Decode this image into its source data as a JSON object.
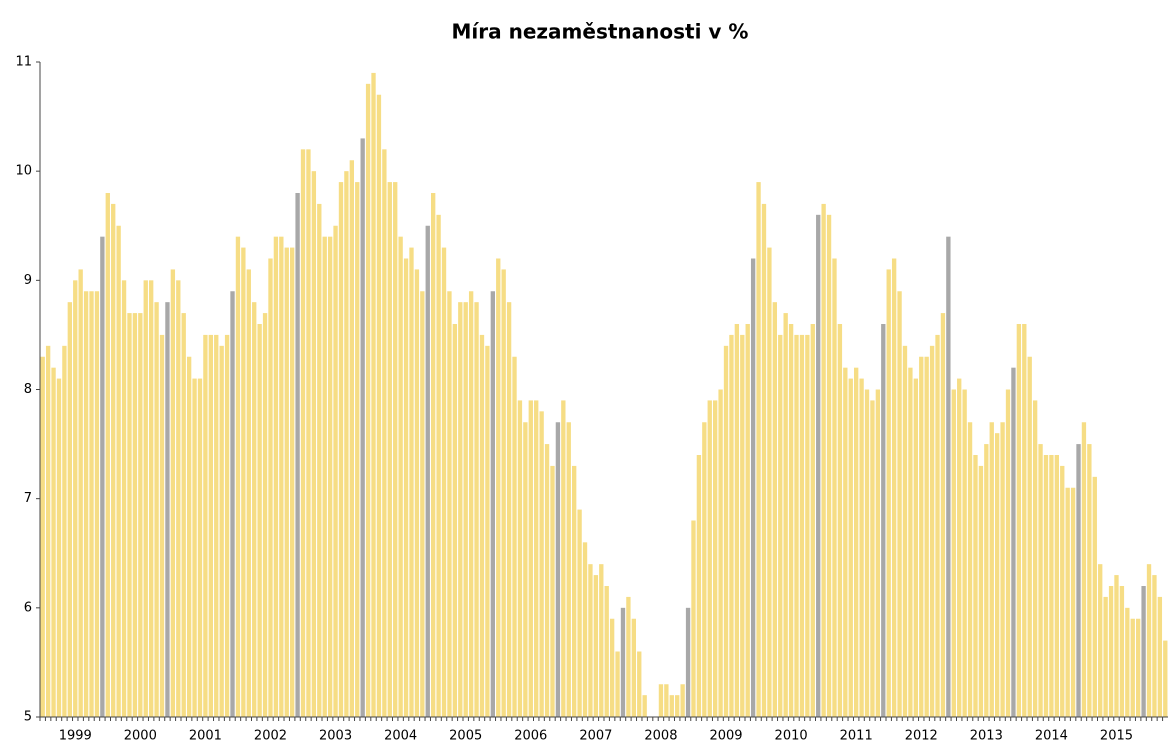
{
  "chart_data": {
    "type": "bar",
    "title": "Míra nezaměstnanosti v %",
    "categories": [
      null,
      null,
      null,
      null,
      null,
      null,
      "1999",
      null,
      null,
      null,
      null,
      null,
      null,
      null,
      null,
      null,
      null,
      null,
      "2000",
      null,
      null,
      null,
      null,
      null,
      null,
      null,
      null,
      null,
      null,
      null,
      "2001",
      null,
      null,
      null,
      null,
      null,
      null,
      null,
      null,
      null,
      null,
      null,
      "2002",
      null,
      null,
      null,
      null,
      null,
      null,
      null,
      null,
      null,
      null,
      null,
      "2003",
      null,
      null,
      null,
      null,
      null,
      null,
      null,
      null,
      null,
      null,
      null,
      "2004",
      null,
      null,
      null,
      null,
      null,
      null,
      null,
      null,
      null,
      null,
      null,
      "2005",
      null,
      null,
      null,
      null,
      null,
      null,
      null,
      null,
      null,
      null,
      null,
      "2006",
      null,
      null,
      null,
      null,
      null,
      null,
      null,
      null,
      null,
      null,
      null,
      "2007",
      null,
      null,
      null,
      null,
      null,
      null,
      null,
      null,
      null,
      null,
      null,
      "2008",
      null,
      null,
      null,
      null,
      null,
      null,
      null,
      null,
      null,
      null,
      null,
      "2009",
      null,
      null,
      null,
      null,
      null,
      null,
      null,
      null,
      null,
      null,
      null,
      "2010",
      null,
      null,
      null,
      null,
      null,
      null,
      null,
      null,
      null,
      null,
      null,
      "2011",
      null,
      null,
      null,
      null,
      null,
      null,
      null,
      null,
      null,
      null,
      null,
      "2012",
      null,
      null,
      null,
      null,
      null,
      null,
      null,
      null,
      null,
      null,
      null,
      "2013",
      null,
      null,
      null,
      null,
      null,
      null,
      null,
      null,
      null,
      null,
      null,
      "2014",
      null,
      null,
      null,
      null,
      null,
      null,
      null,
      null,
      null,
      null,
      null,
      "2015",
      null,
      null,
      null,
      null,
      null,
      null,
      null,
      null,
      null
    ],
    "values": [
      8.3,
      8.4,
      8.2,
      8.1,
      8.4,
      8.8,
      9.0,
      9.1,
      8.9,
      8.9,
      8.9,
      9.4,
      9.8,
      9.7,
      9.5,
      9.0,
      8.7,
      8.7,
      8.7,
      9.0,
      9.0,
      8.8,
      8.5,
      8.8,
      9.1,
      9.0,
      8.7,
      8.3,
      8.1,
      8.1,
      8.5,
      8.5,
      8.5,
      8.4,
      8.5,
      8.9,
      9.4,
      9.3,
      9.1,
      8.8,
      8.6,
      8.7,
      9.2,
      9.4,
      9.4,
      9.3,
      9.3,
      9.8,
      10.2,
      10.2,
      10.0,
      9.7,
      9.4,
      9.4,
      9.5,
      9.9,
      10.0,
      10.1,
      9.9,
      10.3,
      10.8,
      10.9,
      10.7,
      10.2,
      9.9,
      9.9,
      9.4,
      9.2,
      9.3,
      9.1,
      8.9,
      9.5,
      9.8,
      9.6,
      9.3,
      8.9,
      8.6,
      8.8,
      8.8,
      8.9,
      8.8,
      8.5,
      8.4,
      8.9,
      9.2,
      9.1,
      8.8,
      8.3,
      7.9,
      7.7,
      7.9,
      7.9,
      7.8,
      7.5,
      7.3,
      7.7,
      7.9,
      7.7,
      7.3,
      6.9,
      6.6,
      6.4,
      6.3,
      6.4,
      6.2,
      5.9,
      5.6,
      6.0,
      6.1,
      5.9,
      5.6,
      5.2,
      5.0,
      5.0,
      5.3,
      5.3,
      5.2,
      5.2,
      5.3,
      6.0,
      6.8,
      7.4,
      7.7,
      7.9,
      7.9,
      8.0,
      8.4,
      8.5,
      8.6,
      8.5,
      8.6,
      9.2,
      9.9,
      9.7,
      9.3,
      8.8,
      8.5,
      8.7,
      8.6,
      8.5,
      8.5,
      8.5,
      8.6,
      9.6,
      9.7,
      9.6,
      9.2,
      8.6,
      8.2,
      8.1,
      8.2,
      8.1,
      8.0,
      7.9,
      8.0,
      8.6,
      9.1,
      9.2,
      8.9,
      8.4,
      8.2,
      8.1,
      8.3,
      8.3,
      8.4,
      8.5,
      8.7,
      9.4,
      8.0,
      8.1,
      8.0,
      7.7,
      7.4,
      7.3,
      7.5,
      7.7,
      7.6,
      7.7,
      8.0,
      8.2,
      8.6,
      8.6,
      8.3,
      7.9,
      7.5,
      7.4,
      7.4,
      7.4,
      7.3,
      7.1,
      7.1,
      7.5,
      7.7,
      7.5,
      7.2,
      6.4,
      6.1,
      6.2,
      6.3,
      6.2,
      6.0,
      5.9,
      5.9,
      6.2,
      6.4,
      6.3,
      6.1,
      5.7
    ],
    "colors": [
      "#f6dd85",
      "#f6dd85",
      "#f6dd85",
      "#f6dd85",
      "#f6dd85",
      "#f6dd85",
      "#f6dd85",
      "#f6dd85",
      "#f6dd85",
      "#f6dd85",
      "#f6dd85",
      "#a8a8a8",
      "#f6dd85",
      "#f6dd85",
      "#f6dd85",
      "#f6dd85",
      "#f6dd85",
      "#f6dd85",
      "#f6dd85",
      "#f6dd85",
      "#f6dd85",
      "#f6dd85",
      "#f6dd85",
      "#a8a8a8",
      "#f6dd85",
      "#f6dd85",
      "#f6dd85",
      "#f6dd85",
      "#f6dd85",
      "#f6dd85",
      "#f6dd85",
      "#f6dd85",
      "#f6dd85",
      "#f6dd85",
      "#f6dd85",
      "#a8a8a8",
      "#f6dd85",
      "#f6dd85",
      "#f6dd85",
      "#f6dd85",
      "#f6dd85",
      "#f6dd85",
      "#f6dd85",
      "#f6dd85",
      "#f6dd85",
      "#f6dd85",
      "#f6dd85",
      "#a8a8a8",
      "#f6dd85",
      "#f6dd85",
      "#f6dd85",
      "#f6dd85",
      "#f6dd85",
      "#f6dd85",
      "#f6dd85",
      "#f6dd85",
      "#f6dd85",
      "#f6dd85",
      "#f6dd85",
      "#a8a8a8",
      "#f6dd85",
      "#f6dd85",
      "#f6dd85",
      "#f6dd85",
      "#f6dd85",
      "#f6dd85",
      "#f6dd85",
      "#f6dd85",
      "#f6dd85",
      "#f6dd85",
      "#f6dd85",
      "#a8a8a8",
      "#f6dd85",
      "#f6dd85",
      "#f6dd85",
      "#f6dd85",
      "#f6dd85",
      "#f6dd85",
      "#f6dd85",
      "#f6dd85",
      "#f6dd85",
      "#f6dd85",
      "#f6dd85",
      "#a8a8a8",
      "#f6dd85",
      "#f6dd85",
      "#f6dd85",
      "#f6dd85",
      "#f6dd85",
      "#f6dd85",
      "#f6dd85",
      "#f6dd85",
      "#f6dd85",
      "#f6dd85",
      "#f6dd85",
      "#a8a8a8",
      "#f6dd85",
      "#f6dd85",
      "#f6dd85",
      "#f6dd85",
      "#f6dd85",
      "#f6dd85",
      "#f6dd85",
      "#f6dd85",
      "#f6dd85",
      "#f6dd85",
      "#f6dd85",
      "#a8a8a8",
      "#f6dd85",
      "#f6dd85",
      "#f6dd85",
      "#f6dd85",
      "#f6dd85",
      "#f6dd85",
      "#f6dd85",
      "#f6dd85",
      "#f6dd85",
      "#f6dd85",
      "#f6dd85",
      "#a8a8a8",
      "#f6dd85",
      "#f6dd85",
      "#f6dd85",
      "#f6dd85",
      "#f6dd85",
      "#f6dd85",
      "#f6dd85",
      "#f6dd85",
      "#f6dd85",
      "#f6dd85",
      "#f6dd85",
      "#a8a8a8",
      "#f6dd85",
      "#f6dd85",
      "#f6dd85",
      "#f6dd85",
      "#f6dd85",
      "#f6dd85",
      "#f6dd85",
      "#f6dd85",
      "#f6dd85",
      "#f6dd85",
      "#f6dd85",
      "#a8a8a8",
      "#f6dd85",
      "#f6dd85",
      "#f6dd85",
      "#f6dd85",
      "#f6dd85",
      "#f6dd85",
      "#f6dd85",
      "#f6dd85",
      "#f6dd85",
      "#f6dd85",
      "#f6dd85",
      "#a8a8a8",
      "#f6dd85",
      "#f6dd85",
      "#f6dd85",
      "#f6dd85",
      "#f6dd85",
      "#f6dd85",
      "#f6dd85",
      "#f6dd85",
      "#f6dd85",
      "#f6dd85",
      "#f6dd85",
      "#a8a8a8",
      "#f6dd85",
      "#f6dd85",
      "#f6dd85",
      "#f6dd85",
      "#f6dd85",
      "#f6dd85",
      "#f6dd85",
      "#f6dd85",
      "#f6dd85",
      "#f6dd85",
      "#f6dd85",
      "#a8a8a8",
      "#f6dd85",
      "#f6dd85",
      "#f6dd85",
      "#f6dd85",
      "#f6dd85",
      "#f6dd85",
      "#f6dd85",
      "#f6dd85",
      "#f6dd85",
      "#f6dd85",
      "#f6dd85",
      "#a8a8a8",
      "#f6dd85",
      "#f6dd85",
      "#f6dd85",
      "#f6dd85",
      "#f6dd85",
      "#f6dd85",
      "#f6dd85",
      "#f6dd85",
      "#f6dd85",
      "#f6dd85",
      "#f6dd85",
      "#a8a8a8",
      "#f6dd85",
      "#f6dd85",
      "#f6dd85",
      "#f6dd85"
    ],
    "ylim": [
      5,
      11
    ],
    "yticks": [
      5,
      6,
      7,
      8,
      9,
      10,
      11
    ]
  }
}
